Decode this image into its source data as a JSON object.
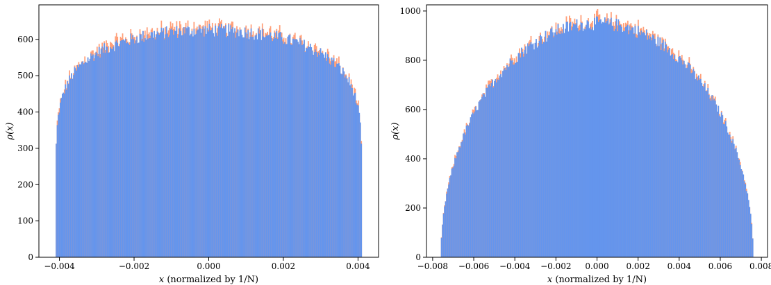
{
  "colors": {
    "front_series": "#6495ED",
    "back_series": "#FFA07A",
    "axes": "#000000",
    "background": "#FFFFFF"
  },
  "chart_data": [
    {
      "type": "histogram",
      "title": "",
      "xlabel_var": "x",
      "xlabel_rest": " (normalized by 1/N)",
      "ylabel_func": "ρ",
      "ylabel_arg": "(x)",
      "xlim": [
        -0.00455,
        0.00455
      ],
      "ylim": [
        0,
        695
      ],
      "xticks": [
        -0.004,
        -0.002,
        0.0,
        0.002,
        0.004
      ],
      "xtick_labels": [
        "−0.004",
        "−0.002",
        "0.000",
        "0.002",
        "0.004"
      ],
      "yticks": [
        0,
        100,
        200,
        300,
        400,
        500,
        600
      ],
      "ytick_labels": [
        "0",
        "100",
        "200",
        "300",
        "400",
        "500",
        "600"
      ],
      "support": [
        -0.0041,
        0.0041
      ],
      "bins": 300,
      "plateau": 625,
      "shape": "flat-top semicircle",
      "grid": false,
      "legend": "none"
    },
    {
      "type": "histogram",
      "title": "",
      "xlabel_var": "x",
      "xlabel_rest": " (normalized by 1/N)",
      "ylabel_func": "ρ",
      "ylabel_arg": "(x)",
      "xlim": [
        -0.0083,
        0.0083
      ],
      "ylim": [
        0,
        1025
      ],
      "xticks": [
        -0.008,
        -0.006,
        -0.004,
        -0.002,
        0.0,
        0.002,
        0.004,
        0.006,
        0.008
      ],
      "xtick_labels": [
        "−0.008",
        "−0.006",
        "−0.004",
        "−0.002",
        "0.000",
        "0.002",
        "0.004",
        "0.006",
        "0.008"
      ],
      "yticks": [
        0,
        200,
        400,
        600,
        800,
        1000
      ],
      "ytick_labels": [
        "0",
        "200",
        "400",
        "600",
        "800",
        "1000"
      ],
      "support": [
        -0.0076,
        0.0076
      ],
      "bins": 300,
      "peak": 950,
      "shape": "semicircle",
      "grid": false,
      "legend": "none"
    }
  ]
}
